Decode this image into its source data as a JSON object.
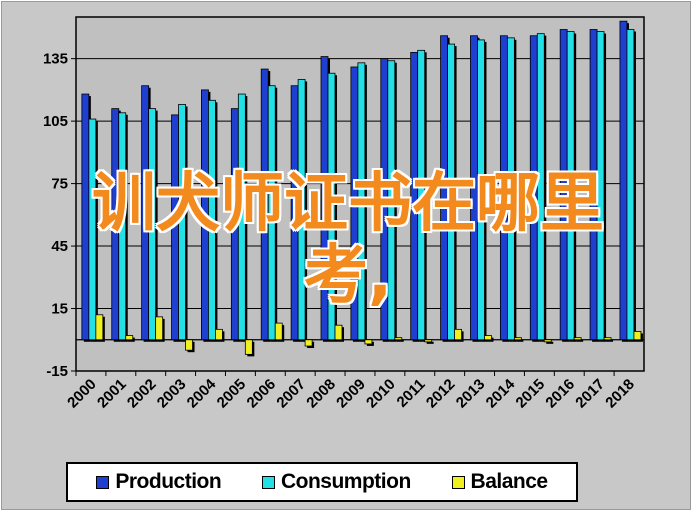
{
  "chart_data": {
    "type": "bar",
    "title": "",
    "xlabel": "",
    "ylabel": "",
    "categories": [
      "2000",
      "2001",
      "2002",
      "2003",
      "2004",
      "2005",
      "2006",
      "2007",
      "2008",
      "2009",
      "2010",
      "2011",
      "2012",
      "2013",
      "2014",
      "2015",
      "2016",
      "2017",
      "2018"
    ],
    "series": [
      {
        "name": "Production",
        "color": "#1f3fd0",
        "values": [
          118,
          111,
          122,
          108,
          120,
          111,
          130,
          122,
          136,
          131,
          135,
          138,
          146,
          146,
          146,
          146,
          149,
          149,
          153
        ]
      },
      {
        "name": "Consumption",
        "color": "#22e0e6",
        "values": [
          106,
          109,
          111,
          113,
          115,
          118,
          122,
          125,
          128,
          133,
          134,
          139,
          142,
          144,
          145,
          147,
          148,
          148,
          149
        ]
      },
      {
        "name": "Balance",
        "color": "#f0f020",
        "values": [
          12,
          2,
          11,
          -5,
          5,
          -7,
          8,
          -3,
          7,
          -2,
          1,
          -1,
          5,
          2,
          1,
          -1,
          1,
          1,
          4
        ]
      }
    ],
    "ylim": [
      -15,
      155
    ],
    "yticks": [
      "-15",
      "15",
      "45",
      "75",
      "105",
      "135"
    ],
    "grid": true,
    "legend_position": "bottom"
  },
  "overlay_text": {
    "line1": "训犬师证书在哪里",
    "line2": "考,"
  },
  "legend": {
    "production": "Production",
    "consumption": "Consumption",
    "balance": "Balance"
  },
  "colors": {
    "frame": "#c8c8c8",
    "plot_background": "#c0c0c0",
    "gridline": "#000000",
    "overlay": "#f28a1e"
  }
}
